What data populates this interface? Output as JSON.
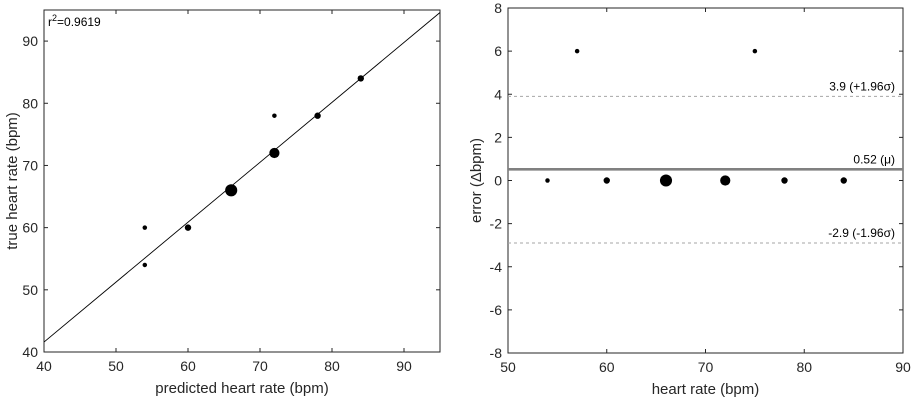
{
  "chart_data": [
    {
      "type": "scatter",
      "title": "",
      "xlabel": "predicted heart rate (bpm)",
      "ylabel": "true heart rate (bpm)",
      "xlim": [
        40,
        95
      ],
      "ylim": [
        40,
        95
      ],
      "xticks": [
        40,
        50,
        60,
        70,
        80,
        90
      ],
      "yticks": [
        40,
        50,
        60,
        70,
        80,
        90
      ],
      "grid": false,
      "annotation": {
        "r_label": "r",
        "sup": "2",
        "value": "=0.9619"
      },
      "fit_line": {
        "from": [
          40,
          41.6
        ],
        "to": [
          95,
          94.6
        ]
      },
      "points": [
        {
          "x": 54,
          "y": 60,
          "count": 1
        },
        {
          "x": 54,
          "y": 54,
          "count": 1
        },
        {
          "x": 60,
          "y": 60,
          "count": 2
        },
        {
          "x": 66,
          "y": 66,
          "count": 5
        },
        {
          "x": 72,
          "y": 72,
          "count": 4
        },
        {
          "x": 72,
          "y": 78,
          "count": 1
        },
        {
          "x": 78,
          "y": 78,
          "count": 2
        },
        {
          "x": 84,
          "y": 84,
          "count": 2
        }
      ]
    },
    {
      "type": "scatter",
      "title": "",
      "xlabel": "heart rate (bpm)",
      "ylabel": "error (Δbpm)",
      "xlim": [
        50,
        90
      ],
      "ylim": [
        -8,
        8
      ],
      "xticks": [
        50,
        60,
        70,
        80,
        90
      ],
      "yticks": [
        -8,
        -6,
        -4,
        -2,
        0,
        2,
        4,
        6,
        8
      ],
      "grid": false,
      "reference_lines": [
        {
          "value": 3.9,
          "label": "3.9 (+1.96σ)",
          "style": "dashed"
        },
        {
          "value": 0.52,
          "label": "0.52 (μ)",
          "style": "solid"
        },
        {
          "value": -2.9,
          "label": "-2.9 (-1.96σ)",
          "style": "dashed"
        }
      ],
      "points": [
        {
          "x": 57,
          "y": 6,
          "count": 1
        },
        {
          "x": 75,
          "y": 6,
          "count": 1
        },
        {
          "x": 54,
          "y": 0,
          "count": 1
        },
        {
          "x": 60,
          "y": 0,
          "count": 2
        },
        {
          "x": 66,
          "y": 0,
          "count": 5
        },
        {
          "x": 72,
          "y": 0,
          "count": 4
        },
        {
          "x": 78,
          "y": 0,
          "count": 2
        },
        {
          "x": 84,
          "y": 0,
          "count": 2
        }
      ]
    }
  ]
}
